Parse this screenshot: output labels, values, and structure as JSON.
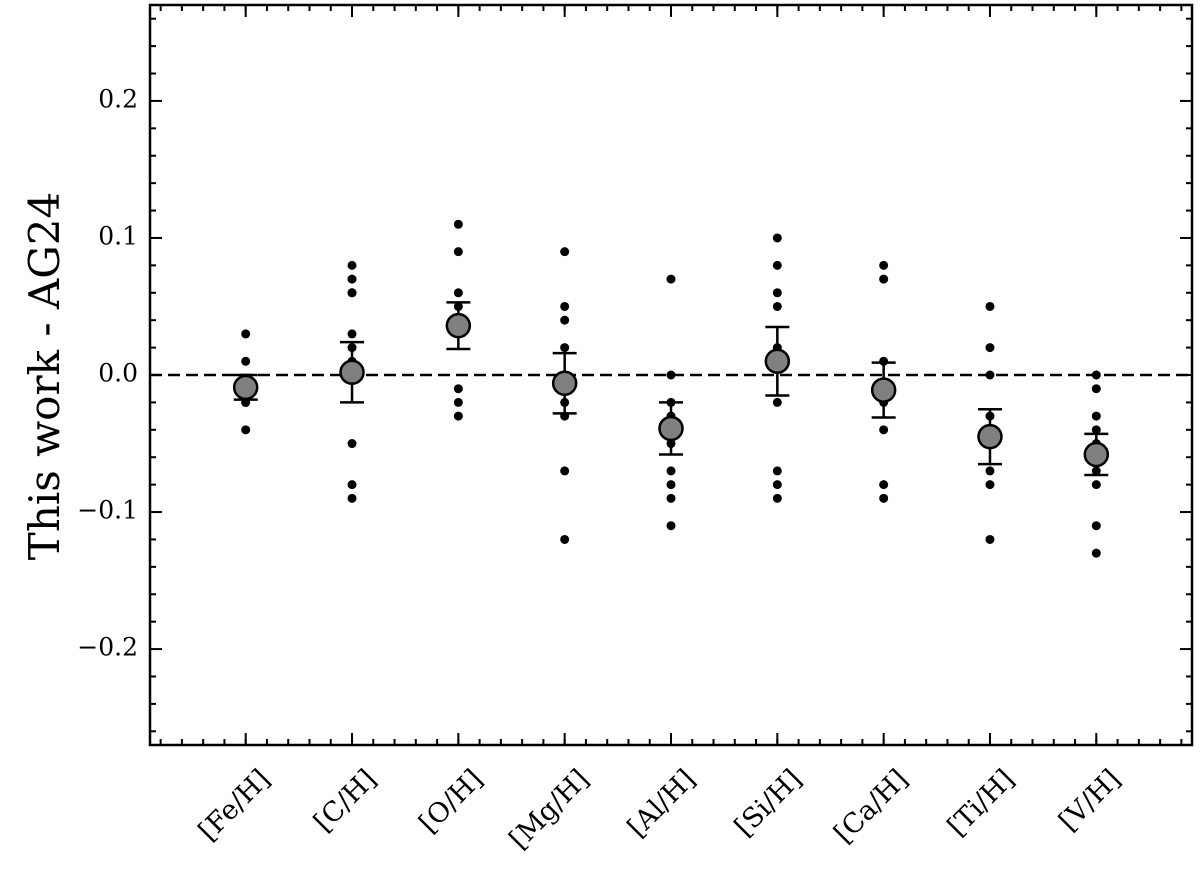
{
  "chart_data": {
    "type": "errorbar",
    "ylabel": "This work - AG24",
    "categories": [
      "[Fe/H]",
      "[C/H]",
      "[O/H]",
      "[Mg/H]",
      "[Al/H]",
      "[Si/H]",
      "[Ca/H]",
      "[Ti/H]",
      "[V/H]"
    ],
    "values": [
      -0.009,
      0.002,
      0.036,
      -0.006,
      -0.039,
      0.01,
      -0.011,
      -0.045,
      -0.058
    ],
    "errors": [
      0.009,
      0.022,
      0.017,
      0.022,
      0.019,
      0.025,
      0.02,
      0.02,
      0.015
    ],
    "samples": [
      [
        0.03,
        0.01,
        -0.02,
        -0.02,
        -0.04
      ],
      [
        0.08,
        0.07,
        0.06,
        0.06,
        0.03,
        0.02,
        0.01,
        -0.05,
        -0.08,
        -0.09
      ],
      [
        0.11,
        0.09,
        0.06,
        0.05,
        0.04,
        0.03,
        -0.01,
        -0.02,
        -0.03
      ],
      [
        0.09,
        0.05,
        0.04,
        0.02,
        0.0,
        -0.02,
        -0.03,
        -0.07,
        -0.12
      ],
      [
        0.07,
        0.0,
        -0.02,
        -0.03,
        -0.05,
        -0.07,
        -0.08,
        -0.09,
        -0.11
      ],
      [
        0.1,
        0.08,
        0.06,
        0.05,
        0.02,
        -0.02,
        -0.07,
        -0.08,
        -0.09
      ],
      [
        0.08,
        0.07,
        0.01,
        -0.02,
        -0.04,
        -0.08,
        -0.09
      ],
      [
        0.05,
        0.02,
        0.0,
        -0.03,
        -0.05,
        -0.07,
        -0.08,
        -0.12
      ],
      [
        0.0,
        -0.01,
        -0.03,
        -0.04,
        -0.05,
        -0.07,
        -0.08,
        -0.11,
        -0.13
      ]
    ],
    "color": "#808080",
    "sample_color": "#000000",
    "hline": 0,
    "ylim": [
      -0.27,
      0.27
    ],
    "yticks": [
      {
        "value": -0.2,
        "label": "−0.2"
      },
      {
        "value": -0.1,
        "label": "−0.1"
      },
      {
        "value": 0,
        "label": "0.0"
      },
      0.1,
      0.2
    ],
    "minor_yticks": [
      -0.26,
      -0.24,
      -0.22,
      -0.18,
      -0.16,
      -0.14,
      -0.12,
      -0.08,
      -0.06,
      -0.04,
      -0.02,
      0.02,
      0.04,
      0.06,
      0.08,
      0.12,
      0.14,
      0.16,
      0.18,
      0.22,
      0.24,
      0.26
    ]
  }
}
